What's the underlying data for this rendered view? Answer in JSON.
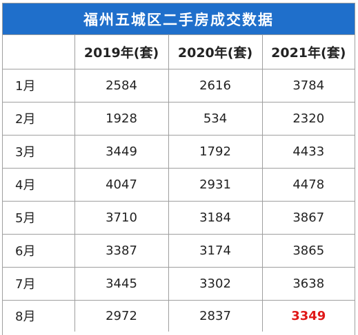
{
  "title": "福州五城区二手房成交数据",
  "columns": [
    "",
    "2019年(套)",
    "2020年(套)",
    "2021年(套)"
  ],
  "rows": [
    {
      "month": "1月",
      "y2019": "2584",
      "y2020": "2616",
      "y2021": "3784"
    },
    {
      "month": "2月",
      "y2019": "1928",
      "y2020": "534",
      "y2021": "2320"
    },
    {
      "month": "3月",
      "y2019": "3449",
      "y2020": "1792",
      "y2021": "4433"
    },
    {
      "month": "4月",
      "y2019": "4047",
      "y2020": "2931",
      "y2021": "4478"
    },
    {
      "month": "5月",
      "y2019": "3710",
      "y2020": "3184",
      "y2021": "3867"
    },
    {
      "month": "6月",
      "y2019": "3387",
      "y2020": "3174",
      "y2021": "3865"
    },
    {
      "month": "7月",
      "y2019": "3445",
      "y2020": "3302",
      "y2021": "3638"
    },
    {
      "month": "8月",
      "y2019": "2972",
      "y2020": "2837",
      "y2021": "3349"
    }
  ],
  "colors": {
    "header_bg": "#1f6fcb",
    "highlight": "#e01818"
  }
}
